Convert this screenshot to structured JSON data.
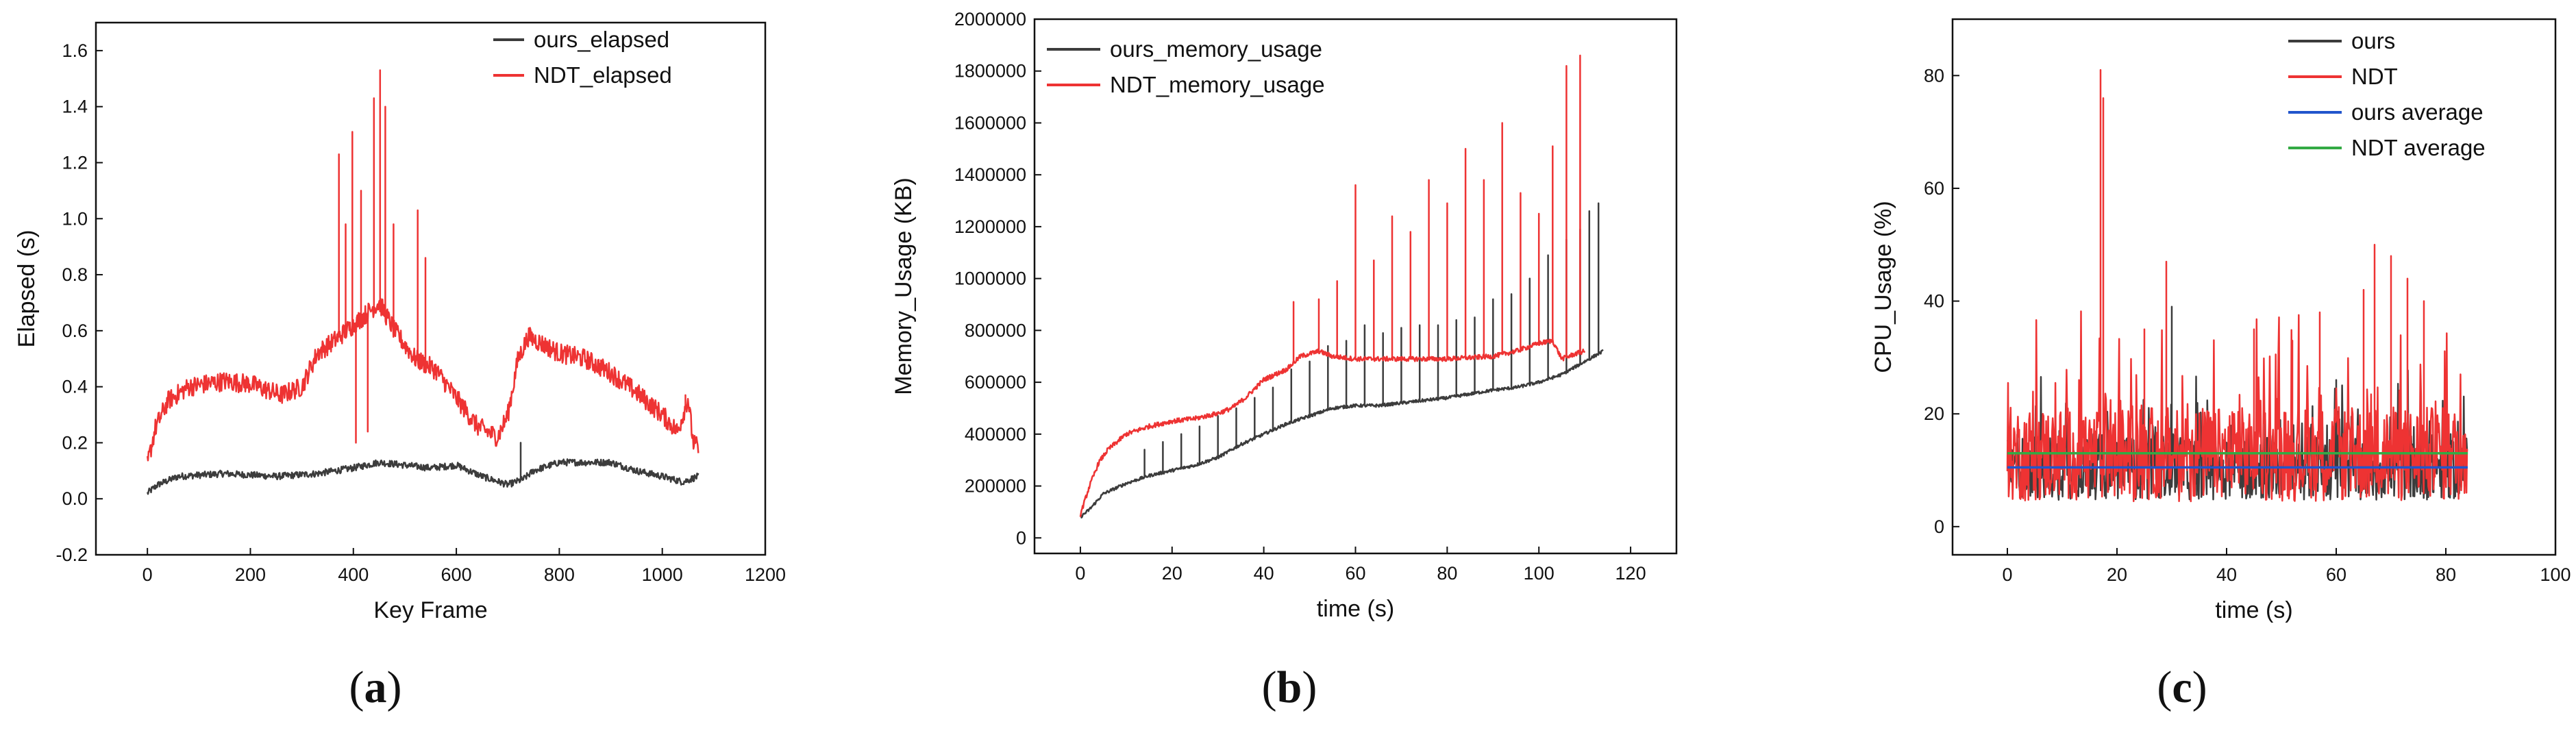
{
  "chart_data": [
    {
      "id": "a",
      "type": "line",
      "panel_label_open": "(",
      "panel_label_letter": "a",
      "panel_label_close": ")",
      "xlabel": "Key Frame",
      "ylabel": "Elapsed (s)",
      "xlim": [
        -100,
        1200
      ],
      "ylim": [
        -0.2,
        1.7
      ],
      "xticks": [
        0,
        200,
        400,
        600,
        800,
        1000,
        1200
      ],
      "yticks": [
        -0.2,
        0.0,
        0.2,
        0.4,
        0.6,
        0.8,
        1.0,
        1.2,
        1.4,
        1.6
      ],
      "ytick_labels": [
        "-0.2",
        "0.0",
        "0.2",
        "0.4",
        "0.6",
        "0.8",
        "1.0",
        "1.2",
        "1.4",
        "1.6"
      ],
      "legend_position": "top-right",
      "series": [
        {
          "name": "ours_elapsed",
          "color": "#3c3c3c",
          "noise": 0.012,
          "points": [
            [
              0,
              0.02
            ],
            [
              20,
              0.05
            ],
            [
              60,
              0.08
            ],
            [
              150,
              0.09
            ],
            [
              250,
              0.08
            ],
            [
              330,
              0.09
            ],
            [
              400,
              0.11
            ],
            [
              450,
              0.13
            ],
            [
              500,
              0.12
            ],
            [
              550,
              0.11
            ],
            [
              600,
              0.12
            ],
            [
              650,
              0.08
            ],
            [
              700,
              0.05
            ],
            [
              730,
              0.07
            ],
            [
              750,
              0.1
            ],
            [
              800,
              0.13
            ],
            [
              900,
              0.13
            ],
            [
              950,
              0.1
            ],
            [
              1000,
              0.08
            ],
            [
              1040,
              0.06
            ],
            [
              1070,
              0.08
            ]
          ]
        },
        {
          "name": "NDT_elapsed",
          "color": "#ee3333",
          "noise": 0.035,
          "points": [
            [
              0,
              0.12
            ],
            [
              15,
              0.25
            ],
            [
              40,
              0.35
            ],
            [
              80,
              0.4
            ],
            [
              150,
              0.42
            ],
            [
              200,
              0.41
            ],
            [
              260,
              0.37
            ],
            [
              300,
              0.4
            ],
            [
              330,
              0.52
            ],
            [
              360,
              0.56
            ],
            [
              400,
              0.62
            ],
            [
              450,
              0.7
            ],
            [
              480,
              0.6
            ],
            [
              520,
              0.5
            ],
            [
              560,
              0.46
            ],
            [
              600,
              0.36
            ],
            [
              640,
              0.26
            ],
            [
              680,
              0.22
            ],
            [
              700,
              0.3
            ],
            [
              720,
              0.5
            ],
            [
              740,
              0.58
            ],
            [
              800,
              0.52
            ],
            [
              850,
              0.5
            ],
            [
              900,
              0.45
            ],
            [
              950,
              0.38
            ],
            [
              1000,
              0.3
            ],
            [
              1030,
              0.24
            ],
            [
              1050,
              0.36
            ],
            [
              1060,
              0.2
            ],
            [
              1070,
              0.18
            ]
          ]
        }
      ],
      "spikes": [
        {
          "series": 1,
          "x": 372,
          "y": 1.23
        },
        {
          "series": 1,
          "x": 385,
          "y": 0.98
        },
        {
          "series": 1,
          "x": 398,
          "y": 1.31
        },
        {
          "series": 1,
          "x": 405,
          "y": 0.2
        },
        {
          "series": 1,
          "x": 415,
          "y": 1.1
        },
        {
          "series": 1,
          "x": 428,
          "y": 0.24
        },
        {
          "series": 1,
          "x": 440,
          "y": 1.43
        },
        {
          "series": 1,
          "x": 452,
          "y": 1.53
        },
        {
          "series": 1,
          "x": 462,
          "y": 1.4
        },
        {
          "series": 1,
          "x": 478,
          "y": 0.98
        },
        {
          "series": 1,
          "x": 525,
          "y": 1.03
        },
        {
          "series": 1,
          "x": 540,
          "y": 0.86
        },
        {
          "series": 1,
          "x": 1045,
          "y": 0.37
        },
        {
          "series": 0,
          "x": 725,
          "y": 0.2
        }
      ]
    },
    {
      "id": "b",
      "type": "line",
      "panel_label_open": "(",
      "panel_label_letter": "b",
      "panel_label_close": ")",
      "xlabel": "time (s)",
      "ylabel": "Memory_Usage (KB)",
      "xlim": [
        -10,
        130
      ],
      "ylim": [
        -60000,
        2000000
      ],
      "xticks": [
        0,
        20,
        40,
        60,
        80,
        100,
        120
      ],
      "yticks": [
        0,
        200000,
        400000,
        600000,
        800000,
        1000000,
        1200000,
        1400000,
        1600000,
        1800000,
        2000000
      ],
      "ytick_labels": [
        "0",
        "200000",
        "400000",
        "600000",
        "800000",
        "1000000",
        "1200000",
        "1400000",
        "1600000",
        "1800000",
        "2000000"
      ],
      "legend_position": "top-left",
      "series": [
        {
          "name": "ours_memory_usage",
          "color": "#3c3c3c",
          "noise": 6000,
          "points": [
            [
              0,
              80000
            ],
            [
              2,
              110000
            ],
            [
              5,
              170000
            ],
            [
              10,
              210000
            ],
            [
              15,
              240000
            ],
            [
              20,
              260000
            ],
            [
              25,
              280000
            ],
            [
              30,
              310000
            ],
            [
              35,
              360000
            ],
            [
              40,
              400000
            ],
            [
              45,
              440000
            ],
            [
              50,
              470000
            ],
            [
              55,
              500000
            ],
            [
              60,
              510000
            ],
            [
              65,
              510000
            ],
            [
              70,
              520000
            ],
            [
              80,
              540000
            ],
            [
              90,
              570000
            ],
            [
              95,
              580000
            ],
            [
              100,
              600000
            ],
            [
              105,
              630000
            ],
            [
              110,
              680000
            ],
            [
              114,
              720000
            ]
          ]
        },
        {
          "name": "NDT_memory_usage",
          "color": "#ee3333",
          "noise": 9000,
          "points": [
            [
              0,
              90000
            ],
            [
              2,
              200000
            ],
            [
              4,
              290000
            ],
            [
              6,
              340000
            ],
            [
              10,
              400000
            ],
            [
              15,
              430000
            ],
            [
              20,
              450000
            ],
            [
              25,
              460000
            ],
            [
              30,
              480000
            ],
            [
              33,
              500000
            ],
            [
              36,
              540000
            ],
            [
              40,
              610000
            ],
            [
              45,
              650000
            ],
            [
              48,
              700000
            ],
            [
              52,
              720000
            ],
            [
              55,
              700000
            ],
            [
              60,
              690000
            ],
            [
              70,
              690000
            ],
            [
              80,
              690000
            ],
            [
              90,
              700000
            ],
            [
              95,
              720000
            ],
            [
              100,
              750000
            ],
            [
              103,
              760000
            ],
            [
              105,
              690000
            ],
            [
              108,
              710000
            ],
            [
              110,
              720000
            ]
          ]
        }
      ],
      "spikes": [
        {
          "series": 1,
          "x": 46.5,
          "y": 910000
        },
        {
          "series": 1,
          "x": 52,
          "y": 920000
        },
        {
          "series": 1,
          "x": 56,
          "y": 990000
        },
        {
          "series": 1,
          "x": 60,
          "y": 1360000
        },
        {
          "series": 1,
          "x": 64,
          "y": 1070000
        },
        {
          "series": 1,
          "x": 68,
          "y": 1240000
        },
        {
          "series": 1,
          "x": 72,
          "y": 1180000
        },
        {
          "series": 1,
          "x": 76,
          "y": 1380000
        },
        {
          "series": 1,
          "x": 80,
          "y": 1290000
        },
        {
          "series": 1,
          "x": 84,
          "y": 1500000
        },
        {
          "series": 1,
          "x": 88,
          "y": 1380000
        },
        {
          "series": 1,
          "x": 92,
          "y": 1600000
        },
        {
          "series": 1,
          "x": 96,
          "y": 1330000
        },
        {
          "series": 1,
          "x": 100,
          "y": 1250000
        },
        {
          "series": 1,
          "x": 103,
          "y": 1510000
        },
        {
          "series": 1,
          "x": 106,
          "y": 1820000
        },
        {
          "series": 1,
          "x": 109,
          "y": 1860000
        },
        {
          "series": 0,
          "x": 14,
          "y": 340000
        },
        {
          "series": 0,
          "x": 18,
          "y": 370000
        },
        {
          "series": 0,
          "x": 22,
          "y": 400000
        },
        {
          "series": 0,
          "x": 26,
          "y": 430000
        },
        {
          "series": 0,
          "x": 30,
          "y": 470000
        },
        {
          "series": 0,
          "x": 34,
          "y": 500000
        },
        {
          "series": 0,
          "x": 38,
          "y": 540000
        },
        {
          "series": 0,
          "x": 42,
          "y": 580000
        },
        {
          "series": 0,
          "x": 46,
          "y": 650000
        },
        {
          "series": 0,
          "x": 50,
          "y": 680000
        },
        {
          "series": 0,
          "x": 54,
          "y": 740000
        },
        {
          "series": 0,
          "x": 58,
          "y": 760000
        },
        {
          "series": 0,
          "x": 62,
          "y": 820000
        },
        {
          "series": 0,
          "x": 66,
          "y": 790000
        },
        {
          "series": 0,
          "x": 70,
          "y": 810000
        },
        {
          "series": 0,
          "x": 74,
          "y": 820000
        },
        {
          "series": 0,
          "x": 78,
          "y": 820000
        },
        {
          "series": 0,
          "x": 82,
          "y": 840000
        },
        {
          "series": 0,
          "x": 86,
          "y": 850000
        },
        {
          "series": 0,
          "x": 90,
          "y": 920000
        },
        {
          "series": 0,
          "x": 94,
          "y": 940000
        },
        {
          "series": 0,
          "x": 98,
          "y": 1000000
        },
        {
          "series": 0,
          "x": 102,
          "y": 1090000
        },
        {
          "series": 0,
          "x": 106,
          "y": 1150000
        },
        {
          "series": 0,
          "x": 109,
          "y": 1190000
        },
        {
          "series": 0,
          "x": 111,
          "y": 1260000
        },
        {
          "series": 0,
          "x": 113,
          "y": 1290000
        }
      ]
    },
    {
      "id": "c",
      "type": "line",
      "panel_label_open": "(",
      "panel_label_letter": "c",
      "panel_label_close": ")",
      "xlabel": "time (s)",
      "ylabel": "CPU_Usage (%)",
      "xlim": [
        -10,
        100
      ],
      "ylim": [
        -5,
        90
      ],
      "xticks": [
        0,
        20,
        40,
        60,
        80,
        100
      ],
      "yticks": [
        0,
        20,
        40,
        60,
        80
      ],
      "ytick_labels": [
        "0",
        "20",
        "40",
        "60",
        "80"
      ],
      "legend_position": "top-right",
      "series": [
        {
          "name": "ours",
          "color": "#3c3c3c",
          "kind": "noisy",
          "base": 10,
          "amp": 9,
          "x_end": 84,
          "points": []
        },
        {
          "name": "NDT",
          "color": "#ee3333",
          "kind": "noisy",
          "base": 12,
          "amp": 13,
          "x_end": 84,
          "points": []
        },
        {
          "name": "ours average",
          "color": "#2255cc",
          "kind": "flat",
          "points": [
            [
              0,
              10.5
            ],
            [
              84,
              10.5
            ]
          ]
        },
        {
          "name": "NDT average",
          "color": "#33aa44",
          "kind": "flat",
          "points": [
            [
              0,
              13
            ],
            [
              84,
              13
            ]
          ]
        }
      ],
      "spikes": [
        {
          "series": 1,
          "x": 17,
          "y": 81
        },
        {
          "series": 1,
          "x": 17.5,
          "y": 76
        },
        {
          "series": 1,
          "x": 29,
          "y": 47
        },
        {
          "series": 1,
          "x": 25,
          "y": 35
        },
        {
          "series": 1,
          "x": 45,
          "y": 35
        },
        {
          "series": 1,
          "x": 52,
          "y": 33
        },
        {
          "series": 1,
          "x": 57,
          "y": 38
        },
        {
          "series": 1,
          "x": 65,
          "y": 42
        },
        {
          "series": 1,
          "x": 67,
          "y": 50
        },
        {
          "series": 1,
          "x": 70,
          "y": 48
        },
        {
          "series": 1,
          "x": 73,
          "y": 44
        },
        {
          "series": 1,
          "x": 76,
          "y": 40
        },
        {
          "series": 0,
          "x": 30,
          "y": 39
        },
        {
          "series": 0,
          "x": 60,
          "y": 26
        }
      ]
    }
  ]
}
